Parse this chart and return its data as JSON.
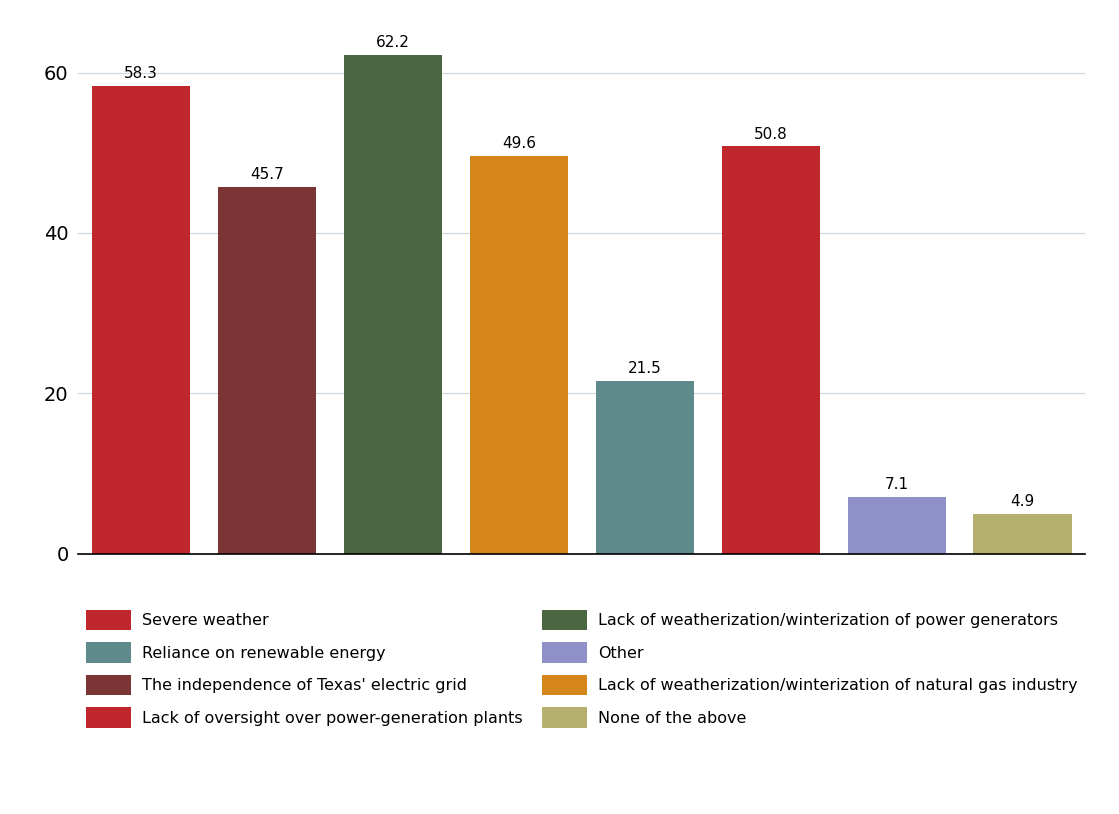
{
  "values": [
    58.3,
    45.7,
    62.2,
    49.6,
    21.5,
    50.8,
    7.1,
    4.9
  ],
  "bar_colors": [
    "#c0272d",
    "#7b3535",
    "#4a6741",
    "#d4861a",
    "#5f8a8b",
    "#c0272d",
    "#9090c8",
    "#b5b070"
  ],
  "legend_left_colors": [
    "#c0272d",
    "#7b3535",
    "#4a6741",
    "#d4861a"
  ],
  "legend_right_colors": [
    "#5f8a8b",
    "#c0272d",
    "#9090c8",
    "#b5b070"
  ],
  "legend_left_labels": [
    "Severe weather",
    "The independence of Texas' electric grid",
    "Lack of weatherization/winterization of power generators",
    "Lack of weatherization/winterization of natural gas industry"
  ],
  "legend_right_labels": [
    "Reliance on renewable energy",
    "Lack of oversight over power-generation plants",
    "Other",
    "None of the above"
  ],
  "ylim": [
    0,
    65
  ],
  "yticks": [
    0,
    20,
    40,
    60
  ],
  "grid_color": "#d0d8e0",
  "background_color": "#ffffff",
  "value_fontsize": 11,
  "ytick_fontsize": 14,
  "legend_fontsize": 11.5
}
